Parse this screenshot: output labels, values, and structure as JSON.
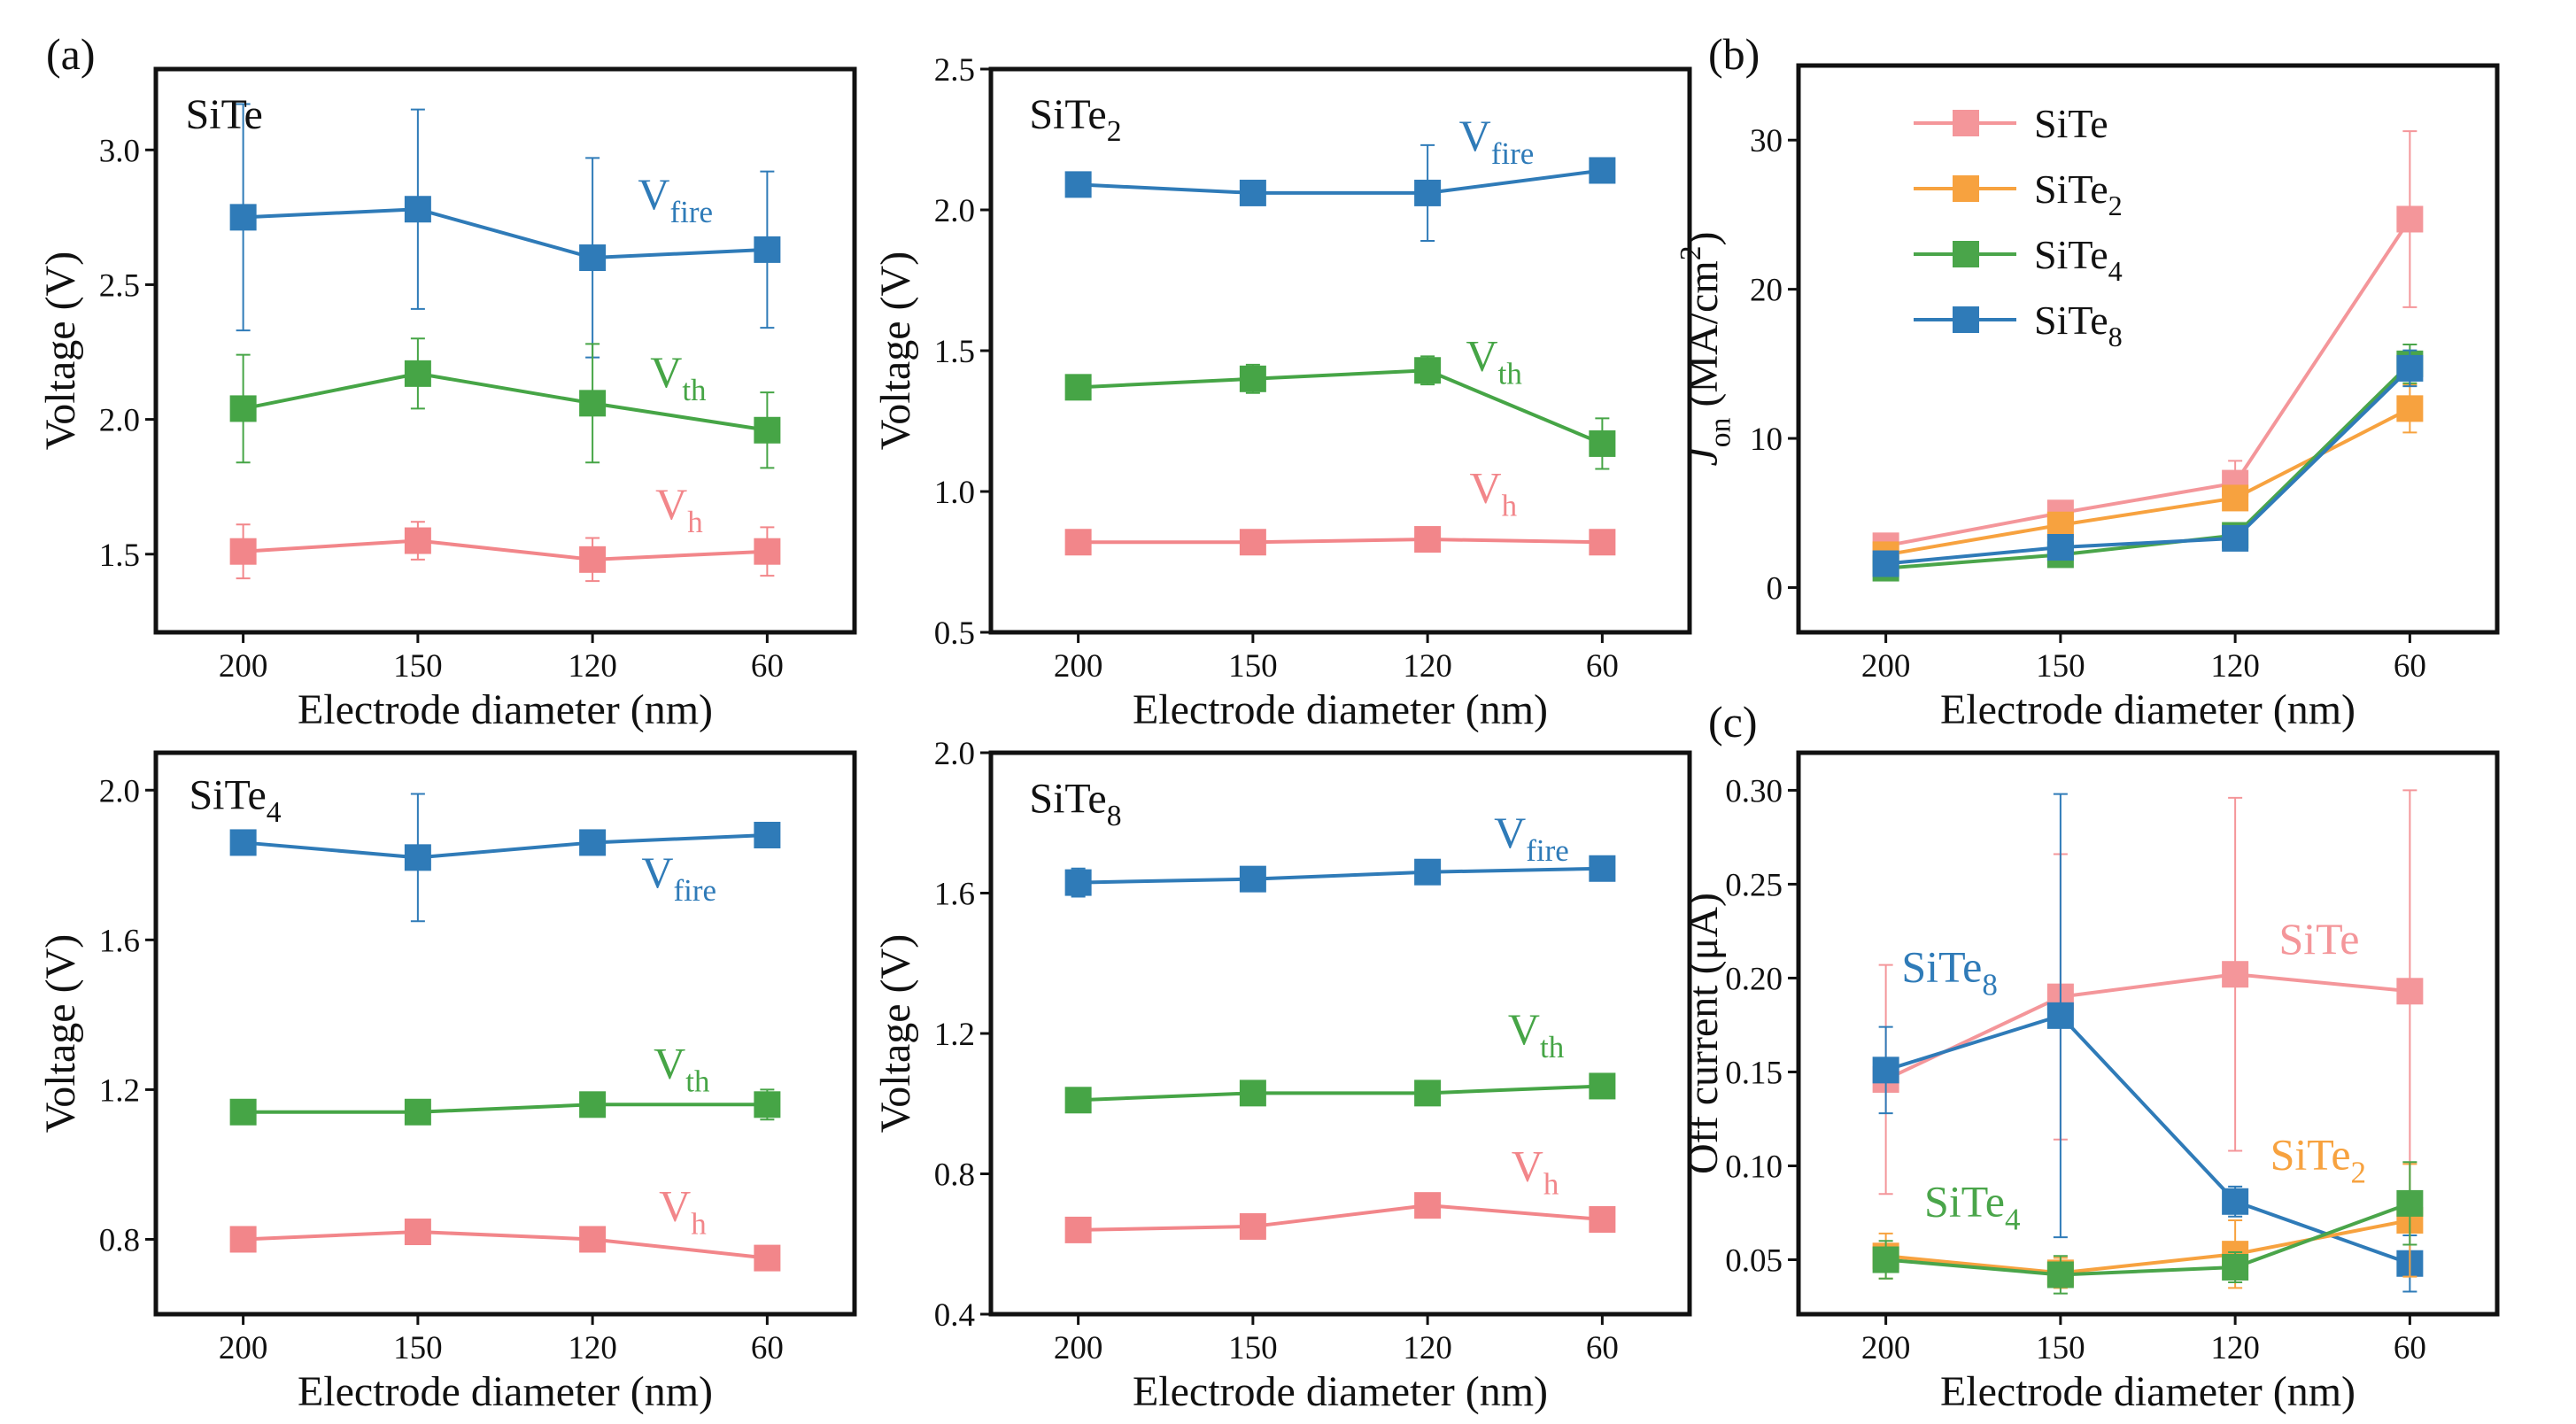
{
  "panel_labels": [
    "(a)",
    "(b)",
    "(c)"
  ],
  "colors": {
    "fire": "#2f7bb8",
    "th": "#46a546",
    "h": "#f2868a",
    "SiTe": "#f4969a",
    "SiTe2": "#f7a23f",
    "SiTe4": "#4aa54a",
    "SiTe8": "#2f7bb8"
  },
  "chart_data": [
    {
      "type": "line",
      "title": [
        {
          "t": "SiTe"
        }
      ],
      "categories": [
        "200",
        "150",
        "120",
        "60"
      ],
      "xlabel": [
        {
          "t": "Electrode diameter (nm)"
        }
      ],
      "ylabel": [
        {
          "t": "Voltage (V)"
        }
      ],
      "ylim": [
        1.21,
        3.3
      ],
      "yticks": [
        "1.5",
        "2.0",
        "2.5",
        "3.0"
      ],
      "series": [
        {
          "name": [
            {
              "t": "V"
            },
            {
              "t": "fire",
              "s": "sub"
            }
          ],
          "color": "#2f7bb8",
          "values": [
            2.75,
            2.78,
            2.6,
            2.63
          ],
          "errors": [
            0.42,
            0.37,
            0.37,
            0.29
          ]
        },
        {
          "name": [
            {
              "t": "V"
            },
            {
              "t": "th",
              "s": "sub"
            }
          ],
          "color": "#46a546",
          "values": [
            2.04,
            2.17,
            2.06,
            1.96
          ],
          "errors": [
            0.2,
            0.13,
            0.22,
            0.14
          ]
        },
        {
          "name": [
            {
              "t": "V"
            },
            {
              "t": "h",
              "s": "sub"
            }
          ],
          "color": "#f2868a",
          "values": [
            1.51,
            1.55,
            1.48,
            1.51
          ],
          "errors": [
            0.1,
            0.07,
            0.08,
            0.09
          ]
        }
      ]
    },
    {
      "type": "line",
      "title": [
        {
          "t": "SiTe"
        },
        {
          "t": "2",
          "s": "sub"
        }
      ],
      "categories": [
        "200",
        "150",
        "120",
        "60"
      ],
      "xlabel": [
        {
          "t": "Electrode diameter (nm)"
        }
      ],
      "ylabel": [
        {
          "t": "Voltage (V)"
        }
      ],
      "ylim": [
        0.5,
        2.5
      ],
      "yticks": [
        "0.5",
        "1.0",
        "1.5",
        "2.0",
        "2.5"
      ],
      "series": [
        {
          "name": [
            {
              "t": "V"
            },
            {
              "t": "fire",
              "s": "sub"
            }
          ],
          "color": "#2f7bb8",
          "values": [
            2.09,
            2.06,
            2.06,
            2.14
          ],
          "errors": [
            0.02,
            0.02,
            0.17,
            0.02
          ]
        },
        {
          "name": [
            {
              "t": "V"
            },
            {
              "t": "th",
              "s": "sub"
            }
          ],
          "color": "#46a546",
          "values": [
            1.37,
            1.4,
            1.43,
            1.17
          ],
          "errors": [
            0.03,
            0.05,
            0.05,
            0.09
          ]
        },
        {
          "name": [
            {
              "t": "V"
            },
            {
              "t": "h",
              "s": "sub"
            }
          ],
          "color": "#f2868a",
          "values": [
            0.82,
            0.82,
            0.83,
            0.82
          ],
          "errors": [
            0.02,
            0.02,
            0.02,
            0.03
          ]
        }
      ]
    },
    {
      "type": "line",
      "title": [],
      "categories": [
        "200",
        "150",
        "120",
        "60"
      ],
      "xlabel": [
        {
          "t": "Electrode diameter (nm)"
        }
      ],
      "ylabel": [
        {
          "t": "J",
          "s": "i"
        },
        {
          "t": "on",
          "s": "sub"
        },
        {
          "t": " (MA/cm"
        },
        {
          "t": "2",
          "s": "sup"
        },
        {
          "t": ")"
        }
      ],
      "ylim": [
        -3,
        35
      ],
      "yticks": [
        "0",
        "10",
        "20",
        "30"
      ],
      "legend_position": "top-left",
      "series": [
        {
          "name": [
            {
              "t": "SiTe"
            }
          ],
          "color": "#f4969a",
          "values": [
            2.8,
            5.0,
            7.0,
            24.7
          ],
          "errors": [
            0.5,
            0.5,
            1.5,
            5.9
          ]
        },
        {
          "name": [
            {
              "t": "SiTe"
            },
            {
              "t": "2",
              "s": "sub"
            }
          ],
          "color": "#f7a23f",
          "values": [
            2.2,
            4.2,
            6.0,
            12.0
          ],
          "errors": [
            0.3,
            0.6,
            0.8,
            1.6
          ]
        },
        {
          "name": [
            {
              "t": "SiTe"
            },
            {
              "t": "4",
              "s": "sub"
            }
          ],
          "color": "#4aa54a",
          "values": [
            1.3,
            2.2,
            3.5,
            15.0
          ],
          "errors": [
            0.4,
            0.4,
            0.5,
            1.3
          ]
        },
        {
          "name": [
            {
              "t": "SiTe"
            },
            {
              "t": "8",
              "s": "sub"
            }
          ],
          "color": "#2f7bb8",
          "values": [
            1.6,
            2.7,
            3.3,
            14.7
          ],
          "errors": [
            0.6,
            0.6,
            0.5,
            1.2
          ]
        }
      ]
    },
    {
      "type": "line",
      "title": [
        {
          "t": "SiTe"
        },
        {
          "t": "4",
          "s": "sub"
        }
      ],
      "categories": [
        "200",
        "150",
        "120",
        "60"
      ],
      "xlabel": [
        {
          "t": "Electrode diameter (nm)"
        }
      ],
      "ylabel": [
        {
          "t": "Voltage (V)"
        }
      ],
      "ylim": [
        0.6,
        2.1
      ],
      "yticks": [
        "0.8",
        "1.2",
        "1.6",
        "2.0"
      ],
      "series": [
        {
          "name": [
            {
              "t": "V"
            },
            {
              "t": "fire",
              "s": "sub"
            }
          ],
          "color": "#2f7bb8",
          "values": [
            1.86,
            1.82,
            1.86,
            1.88
          ],
          "errors": [
            0.01,
            0.17,
            0.03,
            0.02
          ]
        },
        {
          "name": [
            {
              "t": "V"
            },
            {
              "t": "th",
              "s": "sub"
            }
          ],
          "color": "#46a546",
          "values": [
            1.14,
            1.14,
            1.16,
            1.16
          ],
          "errors": [
            0.01,
            0.02,
            0.01,
            0.04
          ]
        },
        {
          "name": [
            {
              "t": "V"
            },
            {
              "t": "h",
              "s": "sub"
            }
          ],
          "color": "#f2868a",
          "values": [
            0.8,
            0.82,
            0.8,
            0.75
          ],
          "errors": [
            0.01,
            0.02,
            0.01,
            0.01
          ]
        }
      ]
    },
    {
      "type": "line",
      "title": [
        {
          "t": "SiTe"
        },
        {
          "t": "8",
          "s": "sub"
        }
      ],
      "categories": [
        "200",
        "150",
        "120",
        "60"
      ],
      "xlabel": [
        {
          "t": "Electrode diameter (nm)"
        }
      ],
      "ylabel": [
        {
          "t": "Voltage (V)"
        }
      ],
      "ylim": [
        0.4,
        2.0
      ],
      "yticks": [
        "0.4",
        "0.8",
        "1.2",
        "1.6",
        "2.0"
      ],
      "series": [
        {
          "name": [
            {
              "t": "V"
            },
            {
              "t": "fire",
              "s": "sub"
            }
          ],
          "color": "#2f7bb8",
          "values": [
            1.63,
            1.64,
            1.66,
            1.67
          ],
          "errors": [
            0.04,
            0.01,
            0.01,
            0.03
          ]
        },
        {
          "name": [
            {
              "t": "V"
            },
            {
              "t": "th",
              "s": "sub"
            }
          ],
          "color": "#46a546",
          "values": [
            1.01,
            1.03,
            1.03,
            1.05
          ],
          "errors": [
            0.01,
            0.01,
            0.01,
            0.01
          ]
        },
        {
          "name": [
            {
              "t": "V"
            },
            {
              "t": "h",
              "s": "sub"
            }
          ],
          "color": "#f2868a",
          "values": [
            0.64,
            0.65,
            0.71,
            0.67
          ],
          "errors": [
            0.01,
            0.01,
            0.01,
            0.01
          ]
        }
      ]
    },
    {
      "type": "line",
      "title": [],
      "categories": [
        "200",
        "150",
        "120",
        "60"
      ],
      "xlabel": [
        {
          "t": "Electrode diameter (nm)"
        }
      ],
      "ylabel": [
        {
          "t": "Off current (μA)"
        }
      ],
      "ylim": [
        0.021,
        0.32
      ],
      "yticks": [
        "0.05",
        "0.10",
        "0.15",
        "0.20",
        "0.25",
        "0.30"
      ],
      "series": [
        {
          "name": [
            {
              "t": "SiTe"
            }
          ],
          "color": "#f4969a",
          "values": [
            0.146,
            0.19,
            0.202,
            0.193
          ],
          "errors": [
            0.061,
            0.076,
            0.094,
            0.107
          ]
        },
        {
          "name": [
            {
              "t": "SiTe"
            },
            {
              "t": "8",
              "s": "sub"
            }
          ],
          "color": "#2f7bb8",
          "values": [
            0.151,
            0.18,
            0.081,
            0.048
          ],
          "errors": [
            0.023,
            0.118,
            0.008,
            0.015
          ]
        },
        {
          "name": [
            {
              "t": "SiTe"
            },
            {
              "t": "2",
              "s": "sub"
            }
          ],
          "color": "#f7a23f",
          "values": [
            0.052,
            0.043,
            0.053,
            0.071
          ],
          "errors": [
            0.012,
            0.008,
            0.018,
            0.03
          ]
        },
        {
          "name": [
            {
              "t": "SiTe"
            },
            {
              "t": "4",
              "s": "sub"
            }
          ],
          "color": "#4aa54a",
          "values": [
            0.05,
            0.042,
            0.046,
            0.08
          ],
          "errors": [
            0.01,
            0.01,
            0.008,
            0.022
          ]
        }
      ]
    }
  ]
}
